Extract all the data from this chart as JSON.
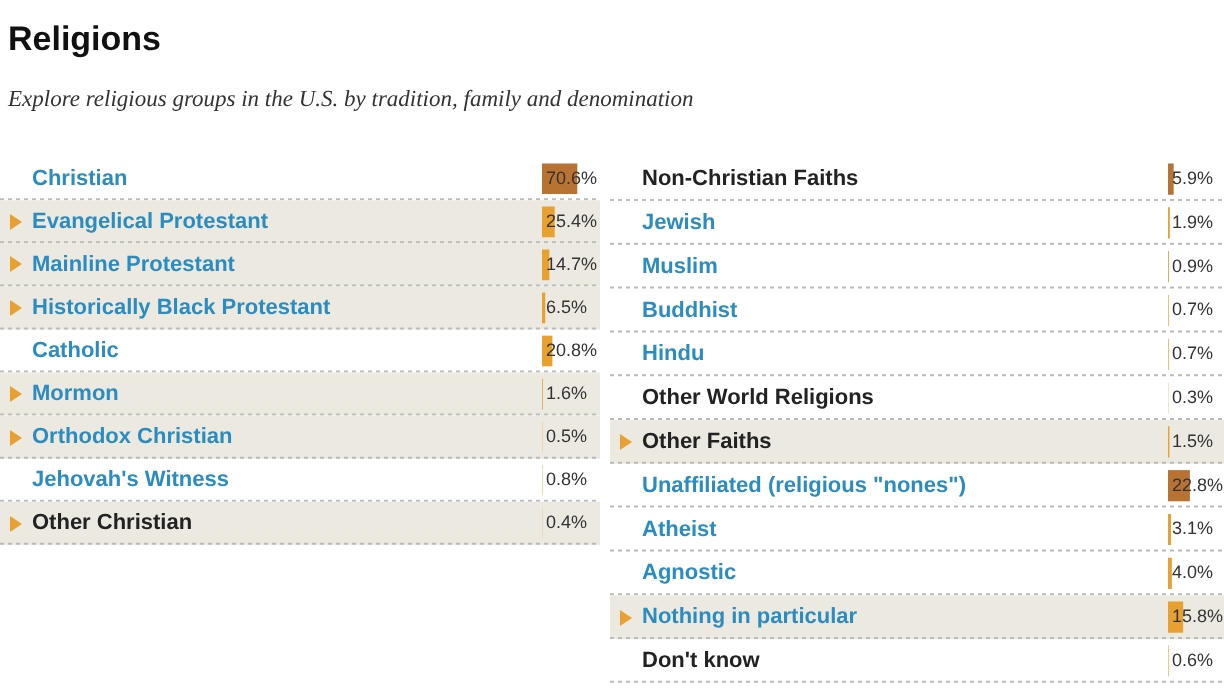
{
  "chart_data": [
    {
      "type": "bar",
      "orientation": "horizontal",
      "title": "Religions",
      "subtitle": "Explore religious groups in the U.S. by tradition, family and denomination",
      "categories": [
        "Christian",
        "Evangelical Protestant",
        "Mainline Protestant",
        "Historically Black Protestant",
        "Catholic",
        "Mormon",
        "Orthodox Christian",
        "Jehovah's Witness",
        "Other Christian"
      ],
      "values": [
        70.6,
        25.4,
        14.7,
        6.5,
        20.8,
        1.6,
        0.5,
        0.8,
        0.4
      ],
      "value_labels": [
        "70.6%",
        "25.4%",
        "14.7%",
        "6.5%",
        "20.8%",
        "1.6%",
        "0.5%",
        "0.8%",
        "0.4%"
      ],
      "colors": [
        "#b87333",
        "#e8a030",
        "#e8a030",
        "#e8a030",
        "#e8a030",
        "#e8a030",
        "#e8a030",
        "#e8a030",
        "#e8a030"
      ],
      "tick_labels": "y"
    },
    {
      "type": "bar",
      "orientation": "horizontal",
      "categories": [
        "Non-Christian Faiths",
        "Jewish",
        "Muslim",
        "Buddhist",
        "Hindu",
        "Other World Religions",
        "Other Faiths",
        "Unaffiliated (religious \"nones\")",
        "Atheist",
        "Agnostic",
        "Nothing in particular",
        "Don't know"
      ],
      "values": [
        5.9,
        1.9,
        0.9,
        0.7,
        0.7,
        0.3,
        1.5,
        22.8,
        3.1,
        4.0,
        15.8,
        0.6
      ],
      "value_labels": [
        "5.9%",
        "1.9%",
        "0.9%",
        "0.7%",
        "0.7%",
        "0.3%",
        "1.5%",
        "22.8%",
        "3.1%",
        "4.0%",
        "15.8%",
        "0.6%"
      ],
      "colors": [
        "#b87333",
        "#e8a030",
        "#e8a030",
        "#e8a030",
        "#e8a030",
        "#e8a030",
        "#e8a030",
        "#b87333",
        "#e8a030",
        "#e8a030",
        "#e8a030",
        "#e8a030"
      ],
      "tick_labels": "y"
    }
  ]
}
